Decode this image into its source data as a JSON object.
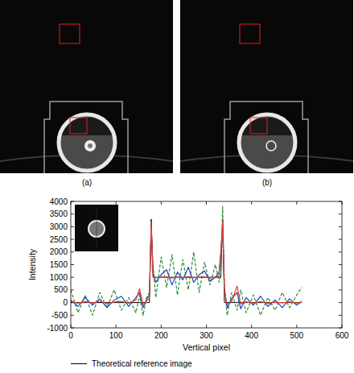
{
  "panels": [
    {
      "label": "(a)"
    },
    {
      "label": "(b)"
    }
  ],
  "chart_data": {
    "type": "line",
    "x": [
      0,
      16,
      32,
      48,
      64,
      80,
      96,
      112,
      128,
      144,
      152,
      160,
      168,
      174,
      178,
      182,
      188,
      200,
      212,
      224,
      236,
      248,
      260,
      272,
      284,
      296,
      308,
      320,
      328,
      332,
      336,
      340,
      346,
      356,
      368,
      376,
      388,
      404,
      420,
      436,
      452,
      468,
      484,
      500,
      511
    ],
    "series": [
      {
        "name": "Theoretical reference image",
        "color": "#000000",
        "line_style": "solid",
        "values": [
          0,
          0,
          0,
          0,
          0,
          0,
          0,
          0,
          0,
          0,
          0,
          0,
          0,
          0,
          3300,
          1000,
          1000,
          1000,
          1000,
          1000,
          1000,
          1000,
          1000,
          1000,
          1000,
          1000,
          1000,
          1000,
          1000,
          1000,
          3300,
          0,
          0,
          0,
          0,
          0,
          0,
          0,
          0,
          0,
          0,
          0,
          0,
          0,
          0
        ]
      },
      {
        "color": "#2e8b3e",
        "line_style": "dashed",
        "values": [
          500,
          -400,
          300,
          -500,
          400,
          -200,
          500,
          -300,
          200,
          -400,
          300,
          -500,
          200,
          400,
          2800,
          1500,
          200,
          1800,
          600,
          1900,
          300,
          1700,
          500,
          2000,
          400,
          1600,
          700,
          1500,
          800,
          1200,
          3800,
          700,
          -500,
          400,
          -300,
          500,
          -400,
          300,
          -500,
          200,
          -300,
          400,
          -200,
          300,
          600
        ]
      },
      {
        "color": "#2040c0",
        "line_style": "solid",
        "values": [
          100,
          -150,
          200,
          -100,
          150,
          -200,
          100,
          250,
          -150,
          200,
          400,
          -200,
          150,
          300,
          3000,
          1200,
          800,
          1100,
          1300,
          700,
          1200,
          900,
          1400,
          800,
          1100,
          1250,
          850,
          1000,
          1200,
          2000,
          3100,
          500,
          -200,
          150,
          400,
          -250,
          200,
          -100,
          250,
          -150,
          100,
          -200,
          150,
          -100,
          50
        ]
      },
      {
        "color": "#e8402a",
        "line_style": "solid",
        "values": [
          50,
          -30,
          40,
          -20,
          60,
          -40,
          20,
          50,
          -30,
          100,
          550,
          -80,
          60,
          200,
          3200,
          1050,
          980,
          1000,
          1020,
          970,
          1010,
          990,
          1030,
          980,
          1000,
          1020,
          970,
          1000,
          1050,
          1900,
          3200,
          400,
          -60,
          40,
          650,
          -50,
          30,
          -20,
          40,
          -30,
          20,
          -10,
          30,
          -20,
          10
        ]
      }
    ],
    "x_label": "Vertical pixel",
    "y_label": "Intensity",
    "xlim": [
      0,
      600
    ],
    "xticks": [
      0,
      100,
      200,
      300,
      400,
      500,
      600
    ],
    "ylim": [
      -1000,
      4000
    ],
    "yticks": [
      -1000,
      -500,
      0,
      500,
      1000,
      1500,
      2000,
      2500,
      3000,
      3500,
      4000
    ],
    "grid": false,
    "legend": "bottom"
  }
}
